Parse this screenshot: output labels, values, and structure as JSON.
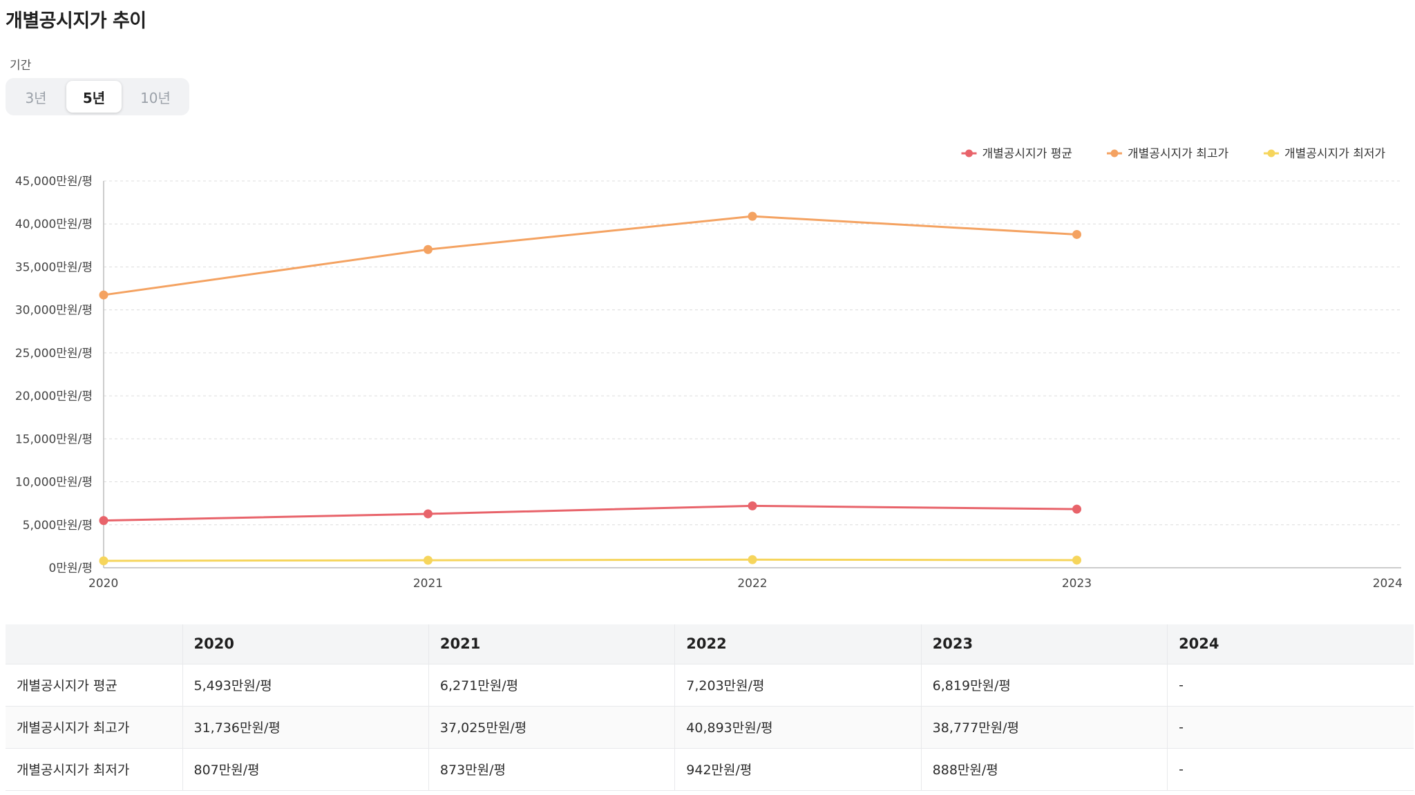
{
  "page": {
    "title": "개별공시지가 추이",
    "period_label": "기간",
    "period_options": [
      "3년",
      "5년",
      "10년"
    ],
    "period_selected": "5년"
  },
  "chart_data": {
    "type": "line",
    "x": [
      "2020",
      "2021",
      "2022",
      "2023",
      "2024"
    ],
    "y_ticks": [
      "0만원/평",
      "5,000만원/평",
      "10,000만원/평",
      "15,000만원/평",
      "20,000만원/평",
      "25,000만원/평",
      "30,000만원/평",
      "35,000만원/평",
      "40,000만원/평",
      "45,000만원/평"
    ],
    "ylim": [
      0,
      45000
    ],
    "grid": true,
    "legend_position": "top-right",
    "series": [
      {
        "name": "개별공시지가 평균",
        "color": "#e8636a",
        "values": [
          5493,
          6271,
          7203,
          6819,
          null
        ]
      },
      {
        "name": "개별공시지가 최고가",
        "color": "#f4a261",
        "values": [
          31736,
          37025,
          40893,
          38777,
          null
        ]
      },
      {
        "name": "개별공시지가 최저가",
        "color": "#f6d55c",
        "values": [
          807,
          873,
          942,
          888,
          null
        ]
      }
    ]
  },
  "table": {
    "headers": [
      "",
      "2020",
      "2021",
      "2022",
      "2023",
      "2024"
    ],
    "rows": [
      [
        "개별공시지가 평균",
        "5,493만원/평",
        "6,271만원/평",
        "7,203만원/평",
        "6,819만원/평",
        "-"
      ],
      [
        "개별공시지가 최고가",
        "31,736만원/평",
        "37,025만원/평",
        "40,893만원/평",
        "38,777만원/평",
        "-"
      ],
      [
        "개별공시지가 최저가",
        "807만원/평",
        "873만원/평",
        "942만원/평",
        "888만원/평",
        "-"
      ]
    ]
  }
}
